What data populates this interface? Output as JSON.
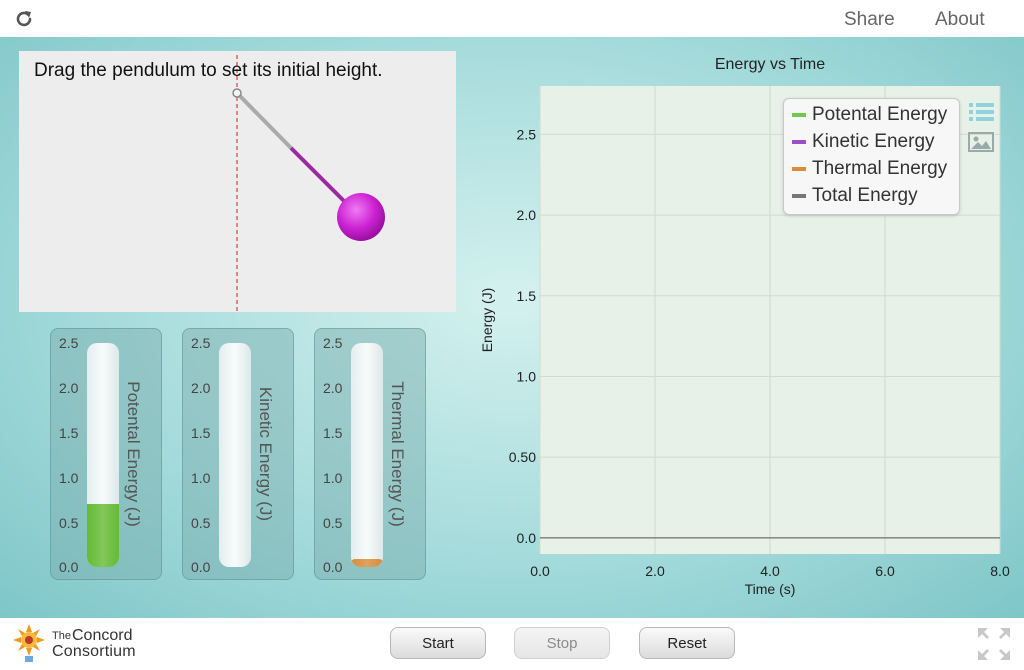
{
  "topbar": {
    "share_label": "Share",
    "about_label": "About"
  },
  "pendulum": {
    "instruction": "Drag the pendulum to set its initial height."
  },
  "bars": [
    {
      "label": "Potental Energy (J)",
      "value": 0.7,
      "color": "#66bb33"
    },
    {
      "label": "Kinetic Energy (J)",
      "value": 0.0,
      "color": "#9b4fc6"
    },
    {
      "label": "Thermal Energy (J)",
      "value": 0.08,
      "color": "#d98c3a"
    }
  ],
  "bar_ticks": [
    "2.5",
    "2.0",
    "1.5",
    "1.0",
    "0.5",
    "0.0"
  ],
  "chart_data": {
    "type": "line",
    "title": "Energy vs Time",
    "xlabel": "Time (s)",
    "ylabel": "Energy (J)",
    "xlim": [
      0,
      8
    ],
    "ylim": [
      -0.1,
      2.8
    ],
    "x_ticks": [
      "0.0",
      "2.0",
      "4.0",
      "6.0",
      "8.0"
    ],
    "y_ticks": [
      "0.0",
      "0.50",
      "1.0",
      "1.5",
      "2.0",
      "2.5"
    ],
    "grid": true,
    "legend_position": "top-right",
    "series": [
      {
        "name": "Potental Energy",
        "color": "#6fc84a",
        "x": [],
        "y": []
      },
      {
        "name": "Kinetic Energy",
        "color": "#9b4fc6",
        "x": [],
        "y": []
      },
      {
        "name": "Thermal Energy",
        "color": "#d98c3a",
        "x": [],
        "y": []
      },
      {
        "name": "Total Energy",
        "color": "#777777",
        "x": [],
        "y": []
      }
    ]
  },
  "controls": {
    "start_label": "Start",
    "stop_label": "Stop",
    "reset_label": "Reset"
  },
  "logo": {
    "line1": "The",
    "line2": "Concord",
    "line3": "Consortium"
  },
  "icons": {
    "reload": "reload-icon",
    "legend": "legend-list-icon",
    "image": "image-snapshot-icon",
    "fullscreen": "fullscreen-icon"
  }
}
